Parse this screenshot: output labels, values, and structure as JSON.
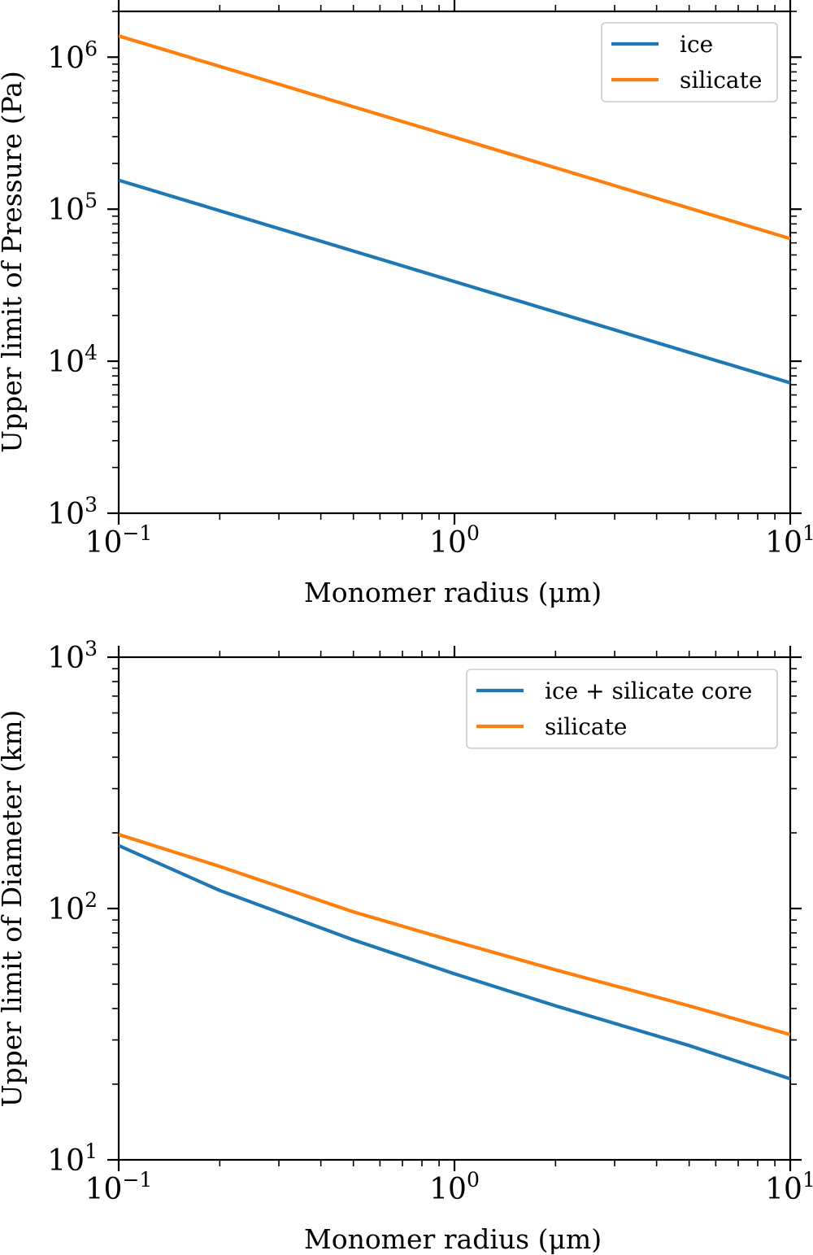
{
  "chart_data": [
    {
      "type": "line",
      "xscale": "log",
      "yscale": "log",
      "xlim": [
        0.1,
        10
      ],
      "ylim": [
        1000,
        2000000
      ],
      "xlabel": "Monomer radius (μm)",
      "ylabel": "Upper limit of Pressure (Pa)",
      "x_ticks": [
        {
          "base": "10",
          "exp": "−1",
          "value": 0.1
        },
        {
          "base": "10",
          "exp": "0",
          "value": 1
        },
        {
          "base": "10",
          "exp": "1",
          "value": 10
        }
      ],
      "y_ticks": [
        {
          "base": "10",
          "exp": "3",
          "value": 1000
        },
        {
          "base": "10",
          "exp": "4",
          "value": 10000
        },
        {
          "base": "10",
          "exp": "5",
          "value": 100000
        },
        {
          "base": "10",
          "exp": "6",
          "value": 1000000
        }
      ],
      "legend_position": "top-right",
      "series": [
        {
          "name": "ice",
          "color": "#1f77b4",
          "x": [
            0.1,
            10
          ],
          "y": [
            155000,
            7200
          ]
        },
        {
          "name": "silicate",
          "color": "#ff7f0e",
          "x": [
            0.1,
            10
          ],
          "y": [
            1380000,
            64000
          ]
        }
      ]
    },
    {
      "type": "line",
      "xscale": "log",
      "yscale": "log",
      "xlim": [
        0.1,
        10
      ],
      "ylim": [
        10,
        1000
      ],
      "xlabel": "Monomer radius (μm)",
      "ylabel": "Upper limit of Diameter (km)",
      "x_ticks": [
        {
          "base": "10",
          "exp": "−1",
          "value": 0.1
        },
        {
          "base": "10",
          "exp": "0",
          "value": 1
        },
        {
          "base": "10",
          "exp": "1",
          "value": 10
        }
      ],
      "y_ticks": [
        {
          "base": "10",
          "exp": "1",
          "value": 10
        },
        {
          "base": "10",
          "exp": "2",
          "value": 100
        },
        {
          "base": "10",
          "exp": "3",
          "value": 1000
        }
      ],
      "legend_position": "top-right",
      "series": [
        {
          "name": "ice + silicate core",
          "color": "#1f77b4",
          "x": [
            0.1,
            0.2,
            0.5,
            1,
            2,
            5,
            10
          ],
          "y": [
            178,
            118,
            75,
            55,
            41,
            28.5,
            21
          ]
        },
        {
          "name": "silicate",
          "color": "#ff7f0e",
          "x": [
            0.1,
            0.2,
            0.5,
            1,
            2,
            5,
            10
          ],
          "y": [
            197,
            147,
            97,
            74,
            57,
            41,
            31.5
          ]
        }
      ]
    }
  ]
}
